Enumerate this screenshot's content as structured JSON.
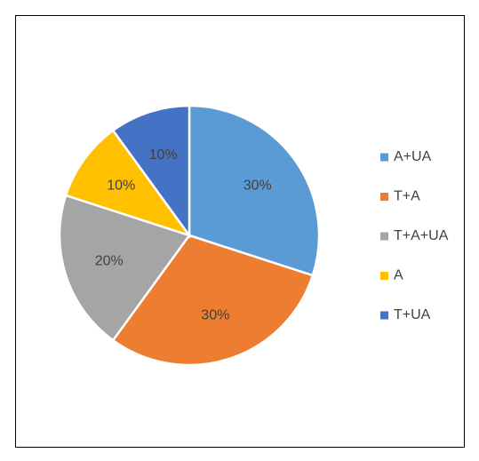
{
  "chart_data": {
    "type": "pie",
    "categories": [
      "A+UA",
      "T+A",
      "T+A+UA",
      "A",
      "T+UA"
    ],
    "values": [
      30,
      30,
      20,
      10,
      10
    ],
    "value_labels": [
      "30%",
      "30%",
      "20%",
      "10%",
      "10%"
    ],
    "colors": [
      "#5b9bd5",
      "#ed7d31",
      "#a5a5a5",
      "#ffc000",
      "#4472c4"
    ],
    "legend": "right"
  }
}
